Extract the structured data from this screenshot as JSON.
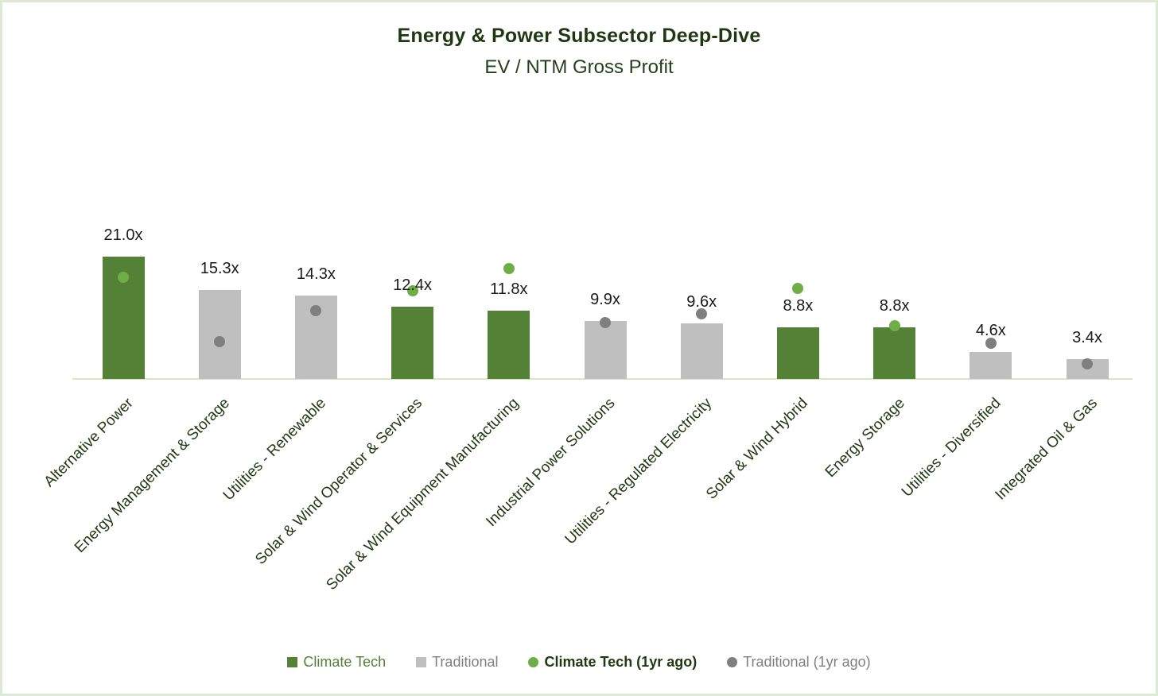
{
  "header": {
    "title": "Energy & Power Subsector Deep-Dive",
    "subtitle": "EV / NTM Gross Profit"
  },
  "chart_data": {
    "type": "bar",
    "title": "Energy & Power Subsector Deep-Dive",
    "subtitle": "EV / NTM Gross Profit",
    "value_suffix": "x",
    "ylim": [
      0,
      24
    ],
    "grid": false,
    "y_axis_shown": false,
    "legend_position": "bottom",
    "categories": [
      "Alternative Power",
      "Energy Management & Storage",
      "Utilities - Renewable",
      "Solar & Wind Operator & Services",
      "Solar & Wind Equipment Manufacturing",
      "Industrial Power Solutions",
      "Utilities - Regulated Electricity",
      "Solar & Wind Hybrid",
      "Energy Storage",
      "Utilities - Diversified",
      "Integrated Oil & Gas"
    ],
    "points": [
      {
        "category": "Alternative Power",
        "group": "climate_tech",
        "bar_value": 21.0,
        "bar_label": "21.0x",
        "dot_value_1yr_ago": 17.4
      },
      {
        "category": "Energy Management & Storage",
        "group": "traditional",
        "bar_value": 15.3,
        "bar_label": "15.3x",
        "dot_value_1yr_ago": 6.4
      },
      {
        "category": "Utilities - Renewable",
        "group": "traditional",
        "bar_value": 14.3,
        "bar_label": "14.3x",
        "dot_value_1yr_ago": 11.8
      },
      {
        "category": "Solar & Wind Operator & Services",
        "group": "climate_tech",
        "bar_value": 12.4,
        "bar_label": "12.4x",
        "dot_value_1yr_ago": 15.2
      },
      {
        "category": "Solar & Wind Equipment Manufacturing",
        "group": "climate_tech",
        "bar_value": 11.8,
        "bar_label": "11.8x",
        "dot_value_1yr_ago": 18.9
      },
      {
        "category": "Industrial Power Solutions",
        "group": "traditional",
        "bar_value": 9.9,
        "bar_label": "9.9x",
        "dot_value_1yr_ago": 9.7
      },
      {
        "category": "Utilities - Regulated Electricity",
        "group": "traditional",
        "bar_value": 9.6,
        "bar_label": "9.6x",
        "dot_value_1yr_ago": 11.2
      },
      {
        "category": "Solar & Wind Hybrid",
        "group": "climate_tech",
        "bar_value": 8.8,
        "bar_label": "8.8x",
        "dot_value_1yr_ago": 15.6
      },
      {
        "category": "Energy Storage",
        "group": "climate_tech",
        "bar_value": 8.8,
        "bar_label": "8.8x",
        "dot_value_1yr_ago": 9.1
      },
      {
        "category": "Utilities - Diversified",
        "group": "traditional",
        "bar_value": 4.6,
        "bar_label": "4.6x",
        "dot_value_1yr_ago": 6.2
      },
      {
        "category": "Integrated Oil & Gas",
        "group": "traditional",
        "bar_value": 3.4,
        "bar_label": "3.4x",
        "dot_value_1yr_ago": 2.6
      }
    ],
    "series": [
      {
        "name": "Climate Tech / Traditional (bars, current)",
        "values": [
          21.0,
          15.3,
          14.3,
          12.4,
          11.8,
          9.9,
          9.6,
          8.8,
          8.8,
          4.6,
          3.4
        ]
      },
      {
        "name": "1yr ago (dots, estimated)",
        "values": [
          17.4,
          6.4,
          11.8,
          15.2,
          18.9,
          9.7,
          11.2,
          15.6,
          9.1,
          6.2,
          2.6
        ]
      }
    ],
    "legend": [
      {
        "label": "Climate Tech",
        "marker": "square",
        "marker_color": "#538135",
        "text_color": "#538135"
      },
      {
        "label": "Traditional",
        "marker": "square",
        "marker_color": "#bfbfbf",
        "text_color": "#808080"
      },
      {
        "label": "Climate Tech (1yr ago)",
        "marker": "circle",
        "marker_color": "#70ad47",
        "text_color": "#1f3812"
      },
      {
        "label": "Traditional (1yr ago)",
        "marker": "circle",
        "marker_color": "#7f7f7f",
        "text_color": "#808080"
      }
    ],
    "colors": {
      "climate_tech_bar": "#538135",
      "traditional_bar": "#bfbfbf",
      "climate_tech_dot": "#70ad47",
      "traditional_dot": "#7f7f7f",
      "axis_line": "#d7e7c6",
      "value_label_text": "#1a1a1a",
      "category_text": "#1f3812",
      "title_text": "#1f3812",
      "page_border": "#dcead3",
      "background": "#ffffff"
    }
  }
}
